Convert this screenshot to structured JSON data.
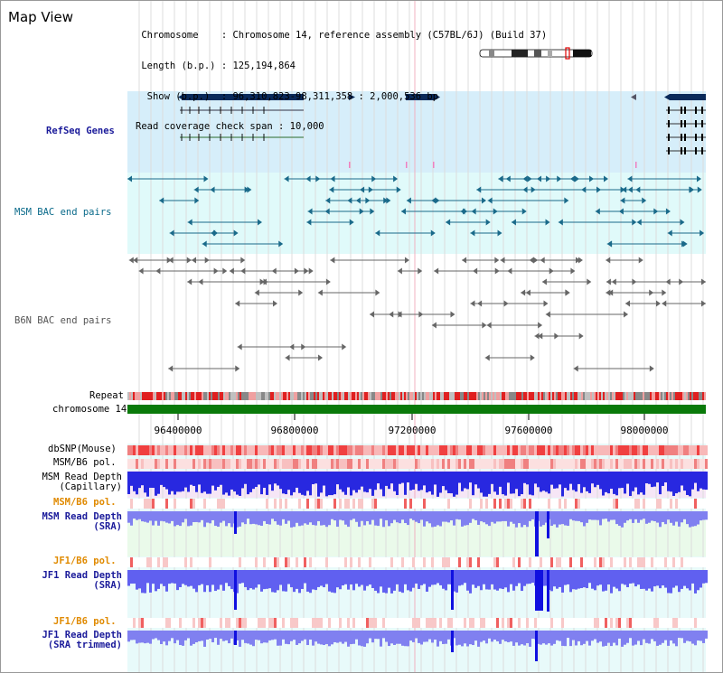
{
  "header": {
    "title": "Map View",
    "info_lines": [
      " Chromosome    : Chromosome 14, reference assembly (C57BL/6J) (Build 37)",
      " Length (b.p.) : 125,194,864",
      "  Show (b.p.)  : 96,310,823-98,311,358 : 2,000,536 bp",
      "Read coverage check span : 10,000"
    ]
  },
  "tracks": {
    "refseq": "RefSeq Genes",
    "msm_bac": "MSM BAC end pairs",
    "b6n_bac": "B6N BAC end pairs",
    "repeat": "Repeat",
    "chromosome": "chromosome 14",
    "dbsnp": "dbSNP(Mouse)",
    "msm_b6_pol_1": "MSM/B6 pol.",
    "msm_read_depth_cap_1": "MSM Read Depth",
    "msm_read_depth_cap_2": "(Capillary)",
    "msm_b6_pol_2": "MSM/B6 pol.",
    "msm_read_depth_sra_1": "MSM Read Depth",
    "msm_read_depth_sra_2": "(SRA)",
    "jf1_b6_pol_1": "JF1/B6 pol.",
    "jf1_read_depth_sra_1": "JF1 Read Depth",
    "jf1_read_depth_sra_2": "(SRA)",
    "jf1_b6_pol_2": "JF1/B6 pol.",
    "jf1_read_depth_trim_1": "JF1 Read Depth",
    "jf1_read_depth_trim_2": "(SRA trimmed)"
  },
  "axis": {
    "ticks": [
      "96400000",
      "96800000",
      "97200000",
      "97600000",
      "98000000"
    ]
  },
  "colors": {
    "refseq_bg": "#d6eefa",
    "bac_bg": "#e0fafa",
    "gene_navy": "#0a2a5a",
    "chromosome_green": "#0a7a0a",
    "snp_red": "#f05050",
    "depth_blue": "#2020e0",
    "depth_light": "#8080f0"
  }
}
